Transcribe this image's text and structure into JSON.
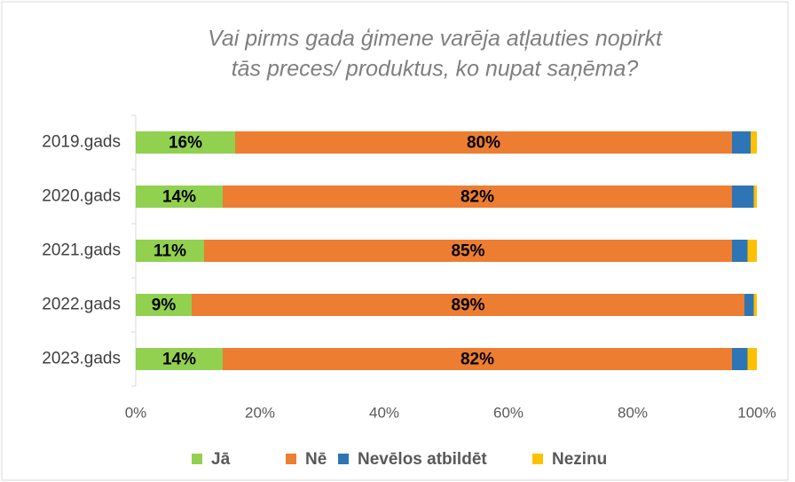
{
  "chart_data": {
    "type": "stacked-barh",
    "title": [
      "Vai pirms gada ģimene varēja atļauties nopirkt",
      "tās preces/ produktus, ko nupat saņēma?"
    ],
    "categories": [
      "2019.gads",
      "2020.gads",
      "2021.gads",
      "2022.gads",
      "2023.gads"
    ],
    "series": [
      {
        "name": "Jā",
        "color": "#92d050",
        "values": [
          16,
          14,
          11,
          9,
          14
        ],
        "value_labels": [
          "16%",
          "14%",
          "11%",
          "9%",
          "14%"
        ]
      },
      {
        "name": "Nē",
        "color": "#ed7d31",
        "values": [
          80,
          82,
          85,
          89,
          82
        ],
        "value_labels": [
          "80%",
          "82%",
          "85%",
          "89%",
          "82%"
        ]
      },
      {
        "name": "Nevēlos atbildēt",
        "color": "#2e75b6",
        "values": [
          3,
          3.5,
          2.5,
          1.5,
          2.5
        ]
      },
      {
        "name": "Nezinu",
        "color": "#ffc000",
        "values": [
          1,
          0.5,
          1.5,
          0.5,
          1.5
        ]
      }
    ],
    "xlim": [
      0,
      100
    ],
    "xticks": [
      {
        "value": 0,
        "label": "0%"
      },
      {
        "value": 20,
        "label": "20%"
      },
      {
        "value": 40,
        "label": "40%"
      },
      {
        "value": 60,
        "label": "60%"
      },
      {
        "value": 80,
        "label": "80%"
      },
      {
        "value": 100,
        "label": "100%"
      }
    ],
    "legend": "bottom"
  }
}
